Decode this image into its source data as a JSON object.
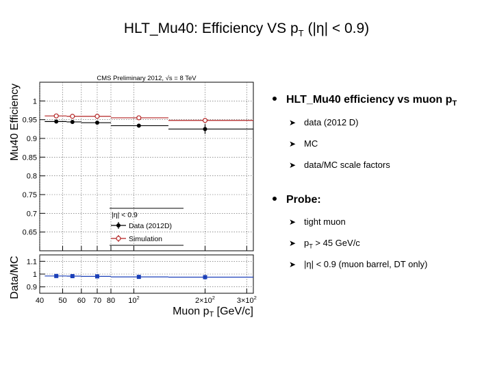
{
  "slide": {
    "title_prefix": "HLT_Mu40: Efficiency VS p",
    "title_sub": "T",
    "title_suffix": " (|η| < 0.9)"
  },
  "bullets": [
    {
      "prefix": "HLT_Mu40 efficiency vs muon p",
      "sub": "T",
      "suffix": "",
      "children": [
        {
          "prefix": "data  (2012 D)",
          "sub": "",
          "suffix": ""
        },
        {
          "prefix": "MC",
          "sub": "",
          "suffix": ""
        },
        {
          "prefix": "data/MC scale factors",
          "sub": "",
          "suffix": ""
        }
      ]
    },
    {
      "prefix": "Probe:",
      "sub": "",
      "suffix": "",
      "children": [
        {
          "prefix": "tight muon",
          "sub": "",
          "suffix": ""
        },
        {
          "prefix": "p",
          "sub": "T",
          "suffix": " > 45 GeV/c"
        },
        {
          "prefix": "|η| < 0.9  (muon barrel, DT only)",
          "sub": "",
          "suffix": ""
        }
      ]
    }
  ],
  "chart_data": {
    "type": "scatter",
    "header": "CMS Preliminary 2012,  √s = 8 TeV",
    "x_scale": "log",
    "xlim": [
      40,
      320
    ],
    "xlabel": "Muon p_T [GeV/c]",
    "x_ticks": [
      "40",
      "50",
      "60",
      "70",
      "80",
      "10^2",
      "2×10^2",
      "3×10^2"
    ],
    "x_tick_values": [
      40,
      50,
      60,
      70,
      80,
      100,
      200,
      300
    ],
    "grid": true,
    "top_panel": {
      "ylabel": "Mu40 Efficiency",
      "ylim": [
        0.6,
        1.05
      ],
      "y_ticks": [
        1,
        0.95,
        0.9,
        0.85,
        0.8,
        0.75,
        0.7,
        0.65
      ],
      "legend_header": "|η| < 0.9",
      "legend_position": "bottom-center",
      "series": [
        {
          "name": "Data (2012D)",
          "color": "#000000",
          "points": [
            {
              "x": 47,
              "xlo": 42,
              "xhi": 52,
              "y": 0.945,
              "err": 0.004
            },
            {
              "x": 55,
              "xlo": 52,
              "xhi": 60,
              "y": 0.944,
              "err": 0.004
            },
            {
              "x": 70,
              "xlo": 60,
              "xhi": 80,
              "y": 0.942,
              "err": 0.004
            },
            {
              "x": 105,
              "xlo": 80,
              "xhi": 140,
              "y": 0.934,
              "err": 0.005
            },
            {
              "x": 200,
              "xlo": 140,
              "xhi": 320,
              "y": 0.925,
              "err": 0.013
            }
          ]
        },
        {
          "name": "Simulation",
          "color": "#b22222",
          "points": [
            {
              "x": 47,
              "xlo": 42,
              "xhi": 52,
              "y": 0.96,
              "err": 0.002
            },
            {
              "x": 55,
              "xlo": 52,
              "xhi": 60,
              "y": 0.959,
              "err": 0.002
            },
            {
              "x": 70,
              "xlo": 60,
              "xhi": 80,
              "y": 0.959,
              "err": 0.002
            },
            {
              "x": 105,
              "xlo": 80,
              "xhi": 140,
              "y": 0.955,
              "err": 0.003
            },
            {
              "x": 200,
              "xlo": 140,
              "xhi": 320,
              "y": 0.948,
              "err": 0.005
            }
          ]
        }
      ]
    },
    "ratio_panel": {
      "ylabel": "Data/MC",
      "ylim": [
        0.85,
        1.15
      ],
      "y_ticks": [
        1.1,
        1,
        0.9
      ],
      "series": [
        {
          "name": "",
          "color": "#1a3fb8",
          "points": [
            {
              "x": 47,
              "xlo": 42,
              "xhi": 52,
              "y": 0.985,
              "err": 0.004
            },
            {
              "x": 55,
              "xlo": 52,
              "xhi": 60,
              "y": 0.984,
              "err": 0.004
            },
            {
              "x": 70,
              "xlo": 60,
              "xhi": 80,
              "y": 0.982,
              "err": 0.004
            },
            {
              "x": 105,
              "xlo": 80,
              "xhi": 140,
              "y": 0.978,
              "err": 0.005
            },
            {
              "x": 200,
              "xlo": 140,
              "xhi": 320,
              "y": 0.976,
              "err": 0.013
            }
          ]
        }
      ]
    }
  }
}
